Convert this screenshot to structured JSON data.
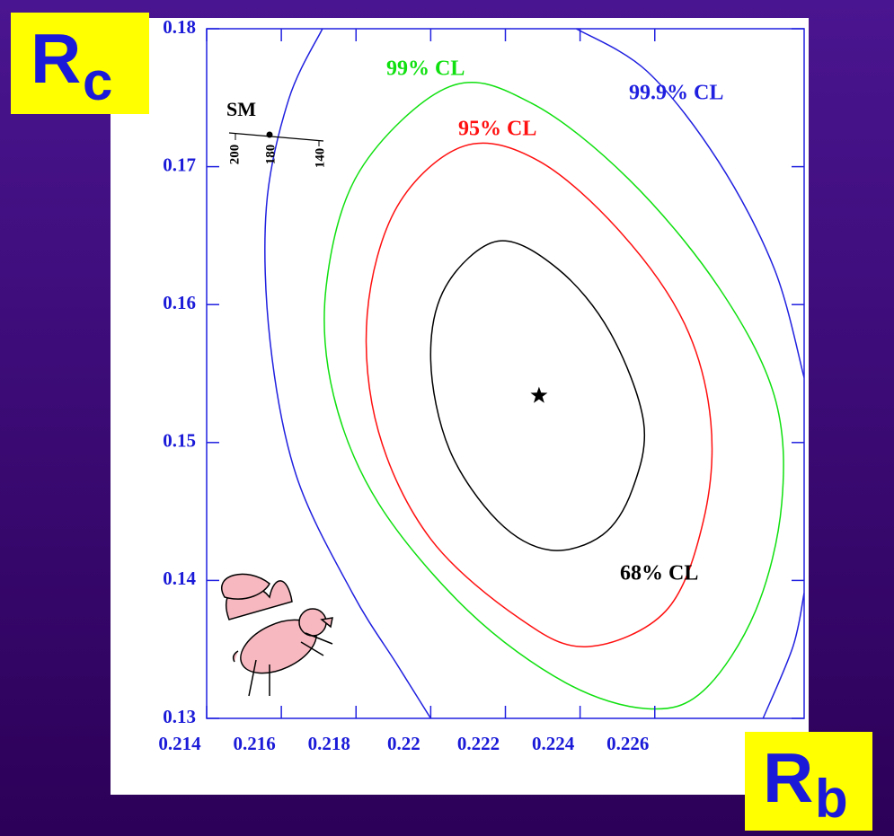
{
  "chart_data": {
    "type": "contour",
    "x_label": {
      "main": "R",
      "sub": "b"
    },
    "y_label": {
      "main": "R",
      "sub": "c"
    },
    "xlim": [
      0.214,
      0.23
    ],
    "ylim": [
      0.13,
      0.18
    ],
    "xticks": [
      0.214,
      0.216,
      0.218,
      0.22,
      0.222,
      0.224,
      0.226
    ],
    "yticks": [
      0.13,
      0.14,
      0.15,
      0.16,
      0.17,
      0.18
    ],
    "series": [
      {
        "name": "68% CL",
        "color": "#000000",
        "x": [
          0.2218,
          0.2234,
          0.2248,
          0.2257,
          0.2254,
          0.2246,
          0.2232,
          0.2218,
          0.2205,
          0.22,
          0.2204
        ],
        "y": [
          0.1646,
          0.1626,
          0.158,
          0.1515,
          0.1466,
          0.1433,
          0.1422,
          0.1443,
          0.1495,
          0.156,
          0.1613
        ]
      },
      {
        "name": "95% CL",
        "color": "#ff1010",
        "x": [
          0.2209,
          0.2229,
          0.2251,
          0.2268,
          0.2275,
          0.2273,
          0.2263,
          0.2242,
          0.2224,
          0.22,
          0.2186,
          0.2183,
          0.2191
        ],
        "y": [
          0.1715,
          0.1704,
          0.1652,
          0.1586,
          0.1515,
          0.1443,
          0.1378,
          0.1352,
          0.1372,
          0.143,
          0.1508,
          0.1593,
          0.1671
        ]
      },
      {
        "name": "99% CL",
        "color": "#10e010",
        "x": [
          0.2205,
          0.2227,
          0.2253,
          0.2277,
          0.2292,
          0.2294,
          0.2287,
          0.2273,
          0.2258,
          0.2236,
          0.221,
          0.2186,
          0.2174,
          0.2172,
          0.2181
        ],
        "y": [
          0.1758,
          0.1746,
          0.1691,
          0.1613,
          0.1534,
          0.1456,
          0.1378,
          0.132,
          0.1307,
          0.1326,
          0.1378,
          0.1456,
          0.1534,
          0.1613,
          0.1697
        ]
      },
      {
        "name": "99.9% CL",
        "color": "#2020e0",
        "closed": false,
        "x": [
          0.2171,
          0.2162,
          0.2156,
          0.2157,
          0.2164,
          0.2179,
          0.2191,
          0.22,
          null,
          0.2239,
          0.2258,
          0.2277,
          0.2292,
          0.23,
          null,
          0.23,
          0.2297,
          0.2289
        ],
        "y": [
          0.18,
          0.1749,
          0.1671,
          0.1573,
          0.1476,
          0.1391,
          0.1339,
          0.13,
          null,
          0.18,
          0.1769,
          0.1704,
          0.1626,
          0.1547,
          null,
          0.1391,
          0.1352,
          0.13
        ]
      }
    ],
    "best_fit": {
      "x": 0.2229,
      "y": 0.1534
    },
    "sm_annotation": {
      "label": "SM",
      "mass_labels": [
        "200",
        "180",
        "140"
      ]
    }
  }
}
